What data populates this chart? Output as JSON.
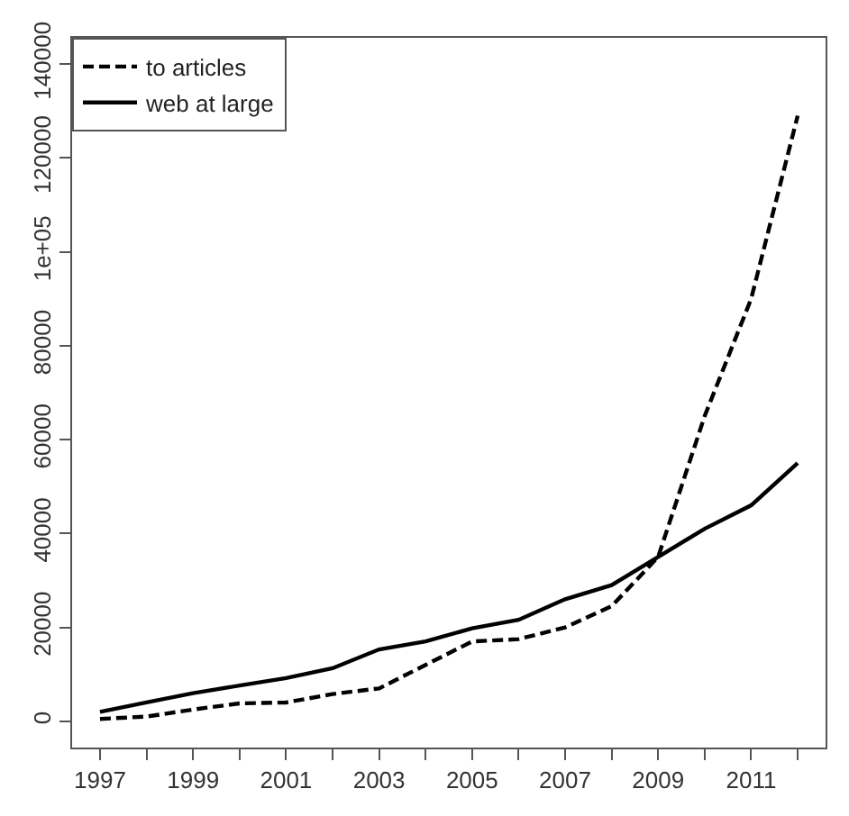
{
  "chart_data": {
    "type": "line",
    "x": [
      1997,
      1998,
      1999,
      2000,
      2001,
      2002,
      2003,
      2004,
      2005,
      2006,
      2007,
      2008,
      2009,
      2010,
      2011,
      2012
    ],
    "series": [
      {
        "name": "to articles",
        "color": "#000000",
        "line_style": "dashed",
        "values": [
          500,
          1000,
          2500,
          3800,
          4000,
          5800,
          7000,
          12000,
          17000,
          17500,
          20000,
          24500,
          35000,
          65000,
          90000,
          129000
        ]
      },
      {
        "name": "web at large",
        "color": "#000000",
        "line_style": "solid",
        "values": [
          2000,
          4000,
          6000,
          7600,
          9200,
          11300,
          15300,
          17000,
          19800,
          21600,
          26000,
          29000,
          35000,
          41000,
          46000,
          55000
        ]
      }
    ],
    "xlim": [
      1996.4,
      2012.6
    ],
    "xticks": [
      1997,
      {
        "value": 1998,
        "label": null
      },
      1999,
      {
        "value": 2000,
        "label": null
      },
      2001,
      {
        "value": 2002,
        "label": null
      },
      2003,
      {
        "value": 2004,
        "label": null
      },
      2005,
      {
        "value": 2006,
        "label": null
      },
      2007,
      {
        "value": 2008,
        "label": null
      },
      2009,
      {
        "value": 2010,
        "label": null
      },
      2011,
      {
        "value": 2012,
        "label": null
      }
    ],
    "ylim": [
      -5600,
      145600
    ],
    "yticks": [
      0,
      20000,
      40000,
      60000,
      80000,
      {
        "value": 100000,
        "label": "1e+05"
      },
      120000,
      140000
    ],
    "legend": "top left",
    "marker": "none"
  }
}
